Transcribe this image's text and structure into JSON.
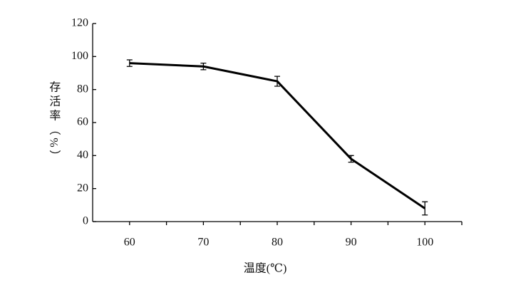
{
  "chart_data": {
    "type": "line",
    "x_label": "温度(℃)",
    "y_label": "存活率（%）",
    "x": [
      60,
      70,
      80,
      90,
      100
    ],
    "series": [
      {
        "values": [
          96,
          94,
          85,
          38,
          8
        ],
        "errors": [
          2,
          2,
          3,
          2,
          4
        ],
        "color": "#000000"
      }
    ],
    "xlim": [
      55,
      105
    ],
    "xticks": [
      60,
      70,
      80,
      90,
      100
    ],
    "xminorticks": [
      65,
      75,
      85,
      95,
      105
    ],
    "ylim": [
      0,
      120
    ],
    "yticks": [
      0,
      20,
      40,
      60,
      80,
      100,
      120
    ],
    "grid": false
  }
}
